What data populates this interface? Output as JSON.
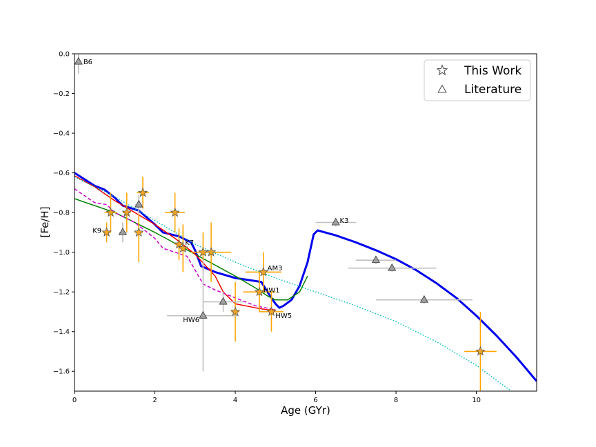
{
  "chart_data": {
    "type": "scatter",
    "xlabel": "Age (GYr)",
    "ylabel": "[Fe/H]",
    "xlim": [
      0,
      11.5
    ],
    "ylim": [
      -1.7,
      0.0
    ],
    "xticks": [
      0,
      2,
      4,
      6,
      8,
      10
    ],
    "xtick_labels": [
      "0",
      "2",
      "4",
      "6",
      "8",
      "10"
    ],
    "yticks": [
      0.0,
      -0.2,
      -0.4,
      -0.6,
      -0.8,
      -1.0,
      -1.2,
      -1.4,
      -1.6
    ],
    "ytick_labels": [
      "0.0",
      "−0.2",
      "−0.4",
      "−0.6",
      "−0.8",
      "−1.0",
      "−1.2",
      "−1.4",
      "−1.6"
    ],
    "grid": false,
    "legend_position": "top-right",
    "legend": [
      {
        "label": "This Work",
        "marker": "star"
      },
      {
        "label": "Literature",
        "marker": "triangle"
      }
    ],
    "series": [
      {
        "marker": "star",
        "marker_color": "#f5a623",
        "errorbar_color": "#ffa500",
        "points": [
          {
            "x": 0.8,
            "y": -0.9,
            "xerr": 0.1,
            "yerr": 0.05
          },
          {
            "x": 0.9,
            "y": -0.8,
            "xerr": 0.15,
            "yerr": 0.1
          },
          {
            "x": 1.3,
            "y": -0.8,
            "xerr": 0.1,
            "yerr": 0.1
          },
          {
            "x": 1.6,
            "y": -0.9,
            "xerr": 0.1,
            "yerr": 0.15
          },
          {
            "x": 1.7,
            "y": -0.7,
            "xerr": 0.15,
            "yerr": 0.08
          },
          {
            "x": 2.5,
            "y": -0.8,
            "xerr": 0.25,
            "yerr": 0.1
          },
          {
            "x": 2.6,
            "y": -0.96,
            "xerr": 0.1,
            "yerr": 0.08
          },
          {
            "x": 2.7,
            "y": -0.98,
            "xerr": 0.1,
            "yerr": 0.12
          },
          {
            "x": 3.2,
            "y": -1.0,
            "xerr": 0.2,
            "yerr": 0.1
          },
          {
            "x": 3.4,
            "y": -1.0,
            "xerr": 0.5,
            "yerr": 0.15
          },
          {
            "x": 4.0,
            "y": -1.3,
            "xerr": 0.1,
            "yerr": 0.15
          },
          {
            "x": 4.6,
            "y": -1.2,
            "xerr": 0.4,
            "yerr": 0.1
          },
          {
            "x": 4.7,
            "y": -1.1,
            "xerr": 0.45,
            "yerr": 0.1
          },
          {
            "x": 4.9,
            "y": -1.3,
            "xerr": 0.3,
            "yerr": 0.1
          },
          {
            "x": 10.1,
            "y": -1.5,
            "xerr": 0.4,
            "yerr": 0.2
          }
        ]
      },
      {
        "marker": "triangle",
        "marker_color": "#a0a0a0",
        "errorbar_color": "#c0c0c0",
        "points": [
          {
            "x": 0.1,
            "y": -0.04,
            "xerr": 0.05,
            "yerr": 0.06
          },
          {
            "x": 1.2,
            "y": -0.9,
            "xerr": 0.1,
            "yerr": 0.05
          },
          {
            "x": 1.6,
            "y": -0.76,
            "xerr": 0.1,
            "yerr": 0.05
          },
          {
            "x": 3.2,
            "y": -1.32,
            "xerr": 0.9,
            "yerr": 0.28
          },
          {
            "x": 3.7,
            "y": -1.25,
            "xerr": 0.5,
            "yerr": 0.05
          },
          {
            "x": 6.5,
            "y": -0.85,
            "xerr": 0.5,
            "yerr": 0.02
          },
          {
            "x": 7.5,
            "y": -1.04,
            "xerr": 0.5,
            "yerr": 0.02
          },
          {
            "x": 7.9,
            "y": -1.08,
            "xerr": 1.1,
            "yerr": 0.02
          },
          {
            "x": 8.7,
            "y": -1.24,
            "xerr": 1.2,
            "yerr": 0.02
          }
        ]
      }
    ],
    "annotations": [
      {
        "text": "B6",
        "x": 0.22,
        "y": -0.04
      },
      {
        "text": "K9",
        "x": 0.45,
        "y": -0.89
      },
      {
        "text": "K7",
        "x": 2.75,
        "y": -0.95
      },
      {
        "text": "HW6",
        "x": 2.7,
        "y": -1.34
      },
      {
        "text": "AM3",
        "x": 4.8,
        "y": -1.08
      },
      {
        "text": "HW1",
        "x": 4.7,
        "y": -1.19
      },
      {
        "text": "HW5",
        "x": 5.0,
        "y": -1.32
      },
      {
        "text": "K3",
        "x": 6.6,
        "y": -0.84
      }
    ],
    "model_curves": [
      {
        "color": "#0000ee",
        "style": "solid",
        "width": 3,
        "x": [
          0,
          0.5,
          0.75,
          1.0,
          1.2,
          1.6,
          2.0,
          2.2,
          2.6,
          2.9,
          3.0,
          3.15,
          3.5,
          4.0,
          4.5,
          4.65,
          4.8,
          5.0,
          5.1,
          5.2,
          5.4,
          5.6,
          5.8,
          5.95,
          6.05,
          6.5,
          7.0,
          7.5,
          8.0,
          8.5,
          9.0,
          9.5,
          10.0,
          10.5,
          11.0,
          11.5
        ],
        "y": [
          -0.6,
          -0.665,
          -0.685,
          -0.725,
          -0.765,
          -0.79,
          -0.86,
          -0.9,
          -0.92,
          -0.95,
          -0.99,
          -1.07,
          -1.1,
          -1.13,
          -1.145,
          -1.15,
          -1.2,
          -1.26,
          -1.28,
          -1.27,
          -1.24,
          -1.17,
          -1.05,
          -0.91,
          -0.89,
          -0.915,
          -0.95,
          -0.99,
          -1.035,
          -1.09,
          -1.155,
          -1.23,
          -1.32,
          -1.42,
          -1.53,
          -1.65
        ]
      },
      {
        "color": "#008000",
        "style": "solid",
        "width": 1.5,
        "x": [
          0,
          1.0,
          2.0,
          3.0,
          4.0,
          4.5,
          4.8,
          5.0,
          5.3,
          5.6,
          5.8
        ],
        "y": [
          -0.73,
          -0.8,
          -0.9,
          -1.01,
          -1.12,
          -1.18,
          -1.22,
          -1.24,
          -1.24,
          -1.2,
          -1.12
        ]
      },
      {
        "color": "#ee0000",
        "style": "solid",
        "width": 1.5,
        "x": [
          0,
          0.5,
          1.0,
          1.5,
          2.0,
          2.5,
          3.0,
          3.5,
          3.7,
          4.0,
          4.5,
          4.8,
          5.0
        ],
        "y": [
          -0.615,
          -0.67,
          -0.74,
          -0.8,
          -0.86,
          -0.93,
          -1.01,
          -1.12,
          -1.2,
          -1.26,
          -1.28,
          -1.29,
          -1.29
        ]
      },
      {
        "color": "#cc00cc",
        "style": "dashed",
        "width": 1.5,
        "x": [
          0,
          0.5,
          0.8,
          1.0,
          1.5,
          2.0,
          2.2,
          2.8,
          3.0,
          3.2,
          3.5,
          4.0,
          4.5,
          5.0
        ],
        "y": [
          -0.68,
          -0.75,
          -0.76,
          -0.8,
          -0.85,
          -0.93,
          -0.98,
          -1.02,
          -1.09,
          -1.16,
          -1.19,
          -1.23,
          -1.27,
          -1.29
        ]
      },
      {
        "color": "#00bbbb",
        "style": "dotted",
        "width": 1.5,
        "x": [
          0,
          1.0,
          2.0,
          3.0,
          4.0,
          5.0,
          6.0,
          7.0,
          8.0,
          9.0,
          10.0,
          11.0
        ],
        "y": [
          -0.62,
          -0.72,
          -0.84,
          -0.96,
          -1.05,
          -1.13,
          -1.2,
          -1.27,
          -1.35,
          -1.45,
          -1.57,
          -1.72
        ]
      }
    ]
  }
}
